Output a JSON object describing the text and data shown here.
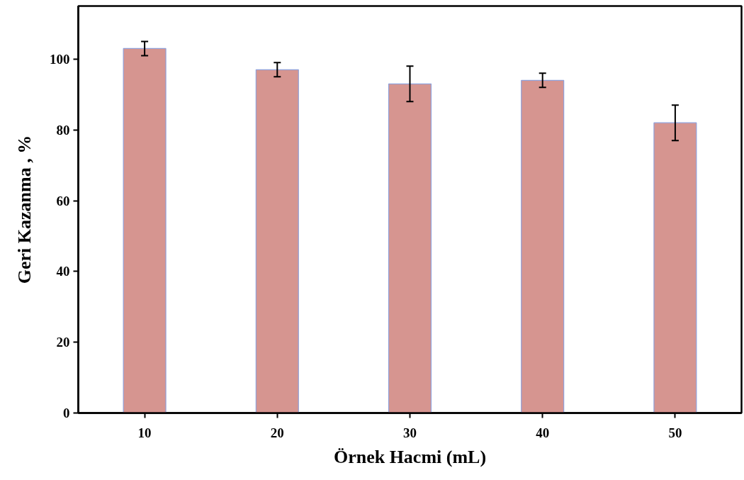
{
  "chart_data": {
    "type": "bar",
    "xlabel": "Örnek Hacmi (mL)",
    "ylabel": "Geri Kazanma , %",
    "categories": [
      "10",
      "20",
      "30",
      "40",
      "50"
    ],
    "values": [
      103,
      97,
      93,
      94,
      82
    ],
    "errors": [
      2,
      2,
      5,
      2,
      5
    ],
    "color": "#d69590",
    "ylim": [
      0,
      115
    ],
    "yticks": [
      0,
      20,
      40,
      60,
      80,
      100
    ],
    "grid": false
  }
}
